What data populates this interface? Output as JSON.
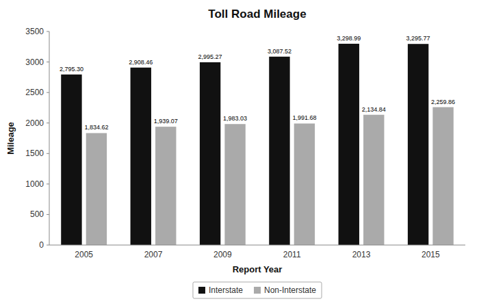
{
  "chart_data": {
    "type": "bar",
    "title": "Toll Road Mileage",
    "xlabel": "Report Year",
    "ylabel": "Mileage",
    "categories": [
      "2005",
      "2007",
      "2009",
      "2011",
      "2013",
      "2015"
    ],
    "series": [
      {
        "name": "Interstate",
        "color": "#111111",
        "values": [
          2795.3,
          2908.46,
          2995.27,
          3087.52,
          3298.99,
          3295.77
        ],
        "value_labels": [
          "2,795.30",
          "2,908.46",
          "2,995.27",
          "3,087.52",
          "3,298.99",
          "3,295.77"
        ]
      },
      {
        "name": "Non-Interstate",
        "color": "#aaaaaa",
        "values": [
          1834.62,
          1939.07,
          1983.03,
          1991.68,
          2134.84,
          2259.86
        ],
        "value_labels": [
          "1,834.62",
          "1,939.07",
          "1,983.03",
          "1,991.68",
          "2,134.84",
          "2,259.86"
        ]
      }
    ],
    "ylim": [
      0,
      3500
    ],
    "yticks": [
      0,
      500,
      1000,
      1500,
      2000,
      2500,
      3000,
      3500
    ],
    "grid": false,
    "legend": "bottom",
    "data_labels": true
  }
}
